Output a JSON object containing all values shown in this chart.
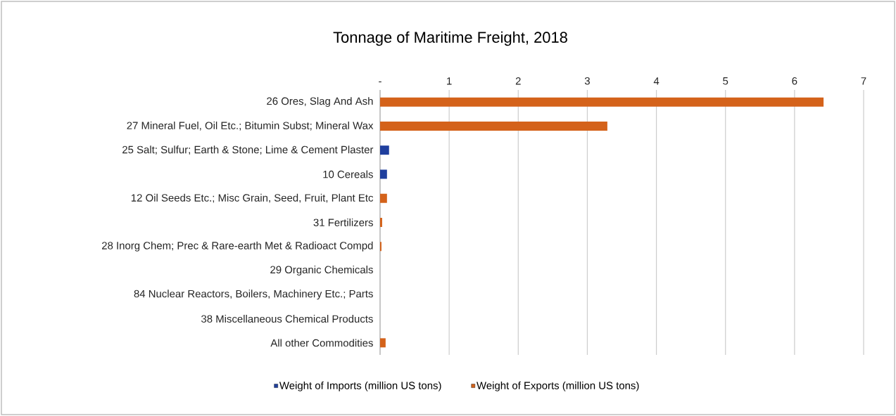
{
  "chart_data": {
    "type": "bar",
    "orientation": "horizontal",
    "title": "Tonnage of Maritime Freight, 2018",
    "categories": [
      "26 Ores, Slag And Ash",
      "27 Mineral Fuel, Oil Etc.; Bitumin Subst; Mineral Wax",
      "25 Salt; Sulfur; Earth & Stone; Lime & Cement Plaster",
      "10 Cereals",
      "12 Oil Seeds Etc.; Misc Grain, Seed, Fruit, Plant Etc",
      "31 Fertilizers",
      "28 Inorg Chem; Prec & Rare-earth Met & Radioact Compd",
      "29 Organic Chemicals",
      "84 Nuclear Reactors, Boilers, Machinery Etc.; Parts",
      "38 Miscellaneous Chemical Products",
      "All other Commodities"
    ],
    "series": [
      {
        "name": "Weight of Imports (million US tons)",
        "color": "#1f3f9e",
        "values": [
          0,
          0,
          0.13,
          0.1,
          0,
          0,
          0,
          0,
          0,
          0,
          0
        ]
      },
      {
        "name": "Weight of Exports (million US tons)",
        "color": "#d4621a",
        "values": [
          6.42,
          3.29,
          0,
          0,
          0.1,
          0.03,
          0.02,
          0,
          0,
          0,
          0.08
        ]
      }
    ],
    "xlim": [
      0,
      7
    ],
    "xticks": [
      {
        "value": 0,
        "label": "-"
      },
      1,
      2,
      3,
      4,
      5,
      6,
      7
    ],
    "grid": "x",
    "legend": "bottom"
  }
}
